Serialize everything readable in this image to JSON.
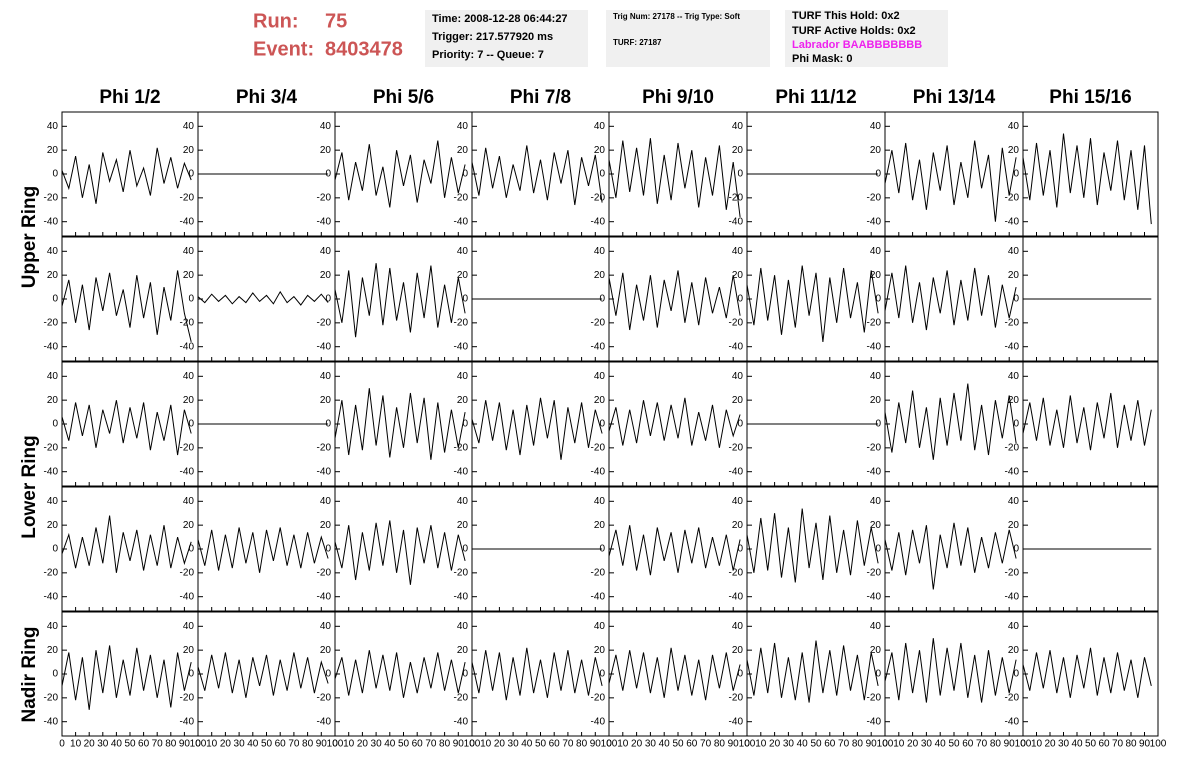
{
  "chart_data": {
    "type": "line",
    "color": "#000000",
    "header": {
      "run_label": "Run:",
      "run": "75",
      "event_label": "Event:",
      "event": "8403478",
      "box1": [
        "Time: 2008-12-28 06:44:27",
        "Trigger: 217.577920 ms",
        "Priority: 7 -- Queue: 7"
      ],
      "box2": [
        "Trig Num: 27178 -- Trig Type: Soft",
        "TURF: 27187"
      ],
      "box3": [
        "TURF This Hold: 0x2",
        "TURF Active Holds: 0x2",
        "Labrador BAABBBBBBB",
        "Phi Mask: 0"
      ]
    },
    "column_titles": [
      "Phi 1/2",
      "Phi 3/4",
      "Phi 5/6",
      "Phi 7/8",
      "Phi 9/10",
      "Phi 11/12",
      "Phi 13/14",
      "Phi 15/16"
    ],
    "row_titles": [
      "Upper Ring",
      "Lower Ring",
      "Nadir Ring"
    ],
    "xlim": [
      0,
      100
    ],
    "xticks": [
      0,
      10,
      20,
      30,
      40,
      50,
      60,
      70,
      80,
      90,
      100
    ],
    "ylim": [
      -52,
      52
    ],
    "yticks": [
      -40,
      -20,
      0,
      20,
      40
    ],
    "x": [
      0,
      5,
      10,
      15,
      20,
      25,
      30,
      35,
      40,
      45,
      50,
      55,
      60,
      65,
      70,
      75,
      80,
      85,
      90,
      95
    ],
    "series": [
      {
        "values": [
          3,
          -12,
          15,
          -20,
          8,
          -25,
          18,
          -6,
          12,
          -15,
          20,
          -10,
          5,
          -18,
          22,
          -8,
          14,
          -12,
          9,
          -5
        ]
      },
      {
        "values": [
          0,
          0,
          0,
          0,
          0,
          0,
          0,
          0,
          0,
          0,
          0,
          0,
          0,
          0,
          0,
          0,
          0,
          0,
          0,
          0
        ]
      },
      {
        "values": [
          -5,
          18,
          -22,
          10,
          -14,
          25,
          -18,
          6,
          -28,
          20,
          -10,
          16,
          -24,
          12,
          -8,
          28,
          -20,
          14,
          -16,
          8
        ]
      },
      {
        "values": [
          10,
          -18,
          22,
          -12,
          15,
          -20,
          8,
          -14,
          24,
          -16,
          12,
          -22,
          18,
          -8,
          20,
          -26,
          14,
          -10,
          16,
          -24
        ]
      },
      {
        "values": [
          12,
          -20,
          28,
          -15,
          22,
          -18,
          30,
          -25,
          16,
          -22,
          26,
          -12,
          20,
          -28,
          14,
          -18,
          24,
          -30,
          10,
          -36
        ]
      },
      {
        "values": [
          0,
          0,
          0,
          0,
          0,
          0,
          0,
          0,
          0,
          0,
          0,
          0,
          0,
          0,
          0,
          0,
          0,
          0,
          0,
          0
        ]
      },
      {
        "values": [
          -8,
          20,
          -16,
          26,
          -22,
          12,
          -30,
          18,
          -14,
          24,
          -26,
          10,
          -20,
          28,
          -12,
          16,
          -40,
          22,
          -18,
          14
        ]
      },
      {
        "values": [
          14,
          -22,
          26,
          -18,
          20,
          -28,
          34,
          -16,
          24,
          -20,
          30,
          -26,
          18,
          -14,
          28,
          -22,
          20,
          -30,
          24,
          -42
        ]
      },
      {
        "values": [
          -6,
          16,
          -20,
          12,
          -26,
          18,
          -10,
          22,
          -14,
          8,
          -24,
          20,
          -16,
          14,
          -30,
          10,
          -18,
          24,
          -12,
          -36
        ]
      },
      {
        "values": [
          2,
          -3,
          4,
          -2,
          3,
          -4,
          2,
          -3,
          5,
          -2,
          3,
          -4,
          6,
          -3,
          2,
          -5,
          3,
          -2,
          4,
          -3
        ]
      },
      {
        "values": [
          8,
          -20,
          24,
          -32,
          18,
          -14,
          30,
          -22,
          26,
          -18,
          14,
          -28,
          22,
          -16,
          28,
          -24,
          12,
          -20,
          18,
          -12
        ]
      },
      {
        "values": [
          0,
          0,
          0,
          0,
          0,
          0,
          0,
          0,
          0,
          0,
          0,
          0,
          0,
          0,
          0,
          0,
          0,
          0,
          0,
          0
        ]
      },
      {
        "values": [
          18,
          -14,
          22,
          -26,
          12,
          -18,
          20,
          -24,
          16,
          -10,
          24,
          -20,
          14,
          -22,
          18,
          -12,
          10,
          -16,
          20,
          -14
        ]
      },
      {
        "values": [
          12,
          -22,
          26,
          -18,
          20,
          -30,
          16,
          -24,
          28,
          -14,
          22,
          -36,
          18,
          -20,
          26,
          -16,
          14,
          -28,
          24,
          -12
        ]
      },
      {
        "values": [
          -10,
          22,
          -16,
          28,
          -20,
          14,
          -26,
          18,
          -12,
          24,
          -22,
          16,
          -18,
          26,
          -14,
          20,
          -24,
          12,
          -16,
          10
        ]
      },
      {
        "values": [
          0,
          0,
          0,
          0,
          0,
          0,
          0,
          0,
          0,
          0,
          0,
          0,
          0,
          0,
          0,
          0,
          0,
          0,
          0,
          0
        ]
      },
      {
        "values": [
          6,
          -14,
          18,
          -10,
          16,
          -20,
          12,
          -8,
          20,
          -16,
          14,
          -12,
          18,
          -22,
          10,
          -14,
          16,
          -26,
          12,
          -8
        ]
      },
      {
        "values": [
          0,
          0,
          0,
          0,
          0,
          0,
          0,
          0,
          0,
          0,
          0,
          0,
          0,
          0,
          0,
          0,
          0,
          0,
          0,
          0
        ]
      },
      {
        "values": [
          -12,
          20,
          -26,
          16,
          -22,
          30,
          -18,
          24,
          -28,
          14,
          -20,
          26,
          -16,
          22,
          -30,
          18,
          -24,
          12,
          -20,
          10
        ]
      },
      {
        "values": [
          4,
          -16,
          20,
          -14,
          18,
          -22,
          12,
          -26,
          16,
          -18,
          22,
          -12,
          20,
          -30,
          14,
          -16,
          18,
          -20,
          12,
          -8
        ]
      },
      {
        "values": [
          -6,
          14,
          -18,
          12,
          -16,
          20,
          -10,
          18,
          -14,
          16,
          -12,
          22,
          -18,
          10,
          -14,
          16,
          -20,
          12,
          -10,
          8
        ]
      },
      {
        "values": [
          0,
          0,
          0,
          0,
          0,
          0,
          0,
          0,
          0,
          0,
          0,
          0,
          0,
          0,
          0,
          0,
          0,
          0,
          0,
          0
        ]
      },
      {
        "values": [
          10,
          -24,
          18,
          -16,
          28,
          -20,
          14,
          -30,
          22,
          -18,
          26,
          -14,
          34,
          -22,
          16,
          -26,
          20,
          -12,
          24,
          -16
        ]
      },
      {
        "values": [
          -8,
          18,
          -14,
          22,
          -18,
          12,
          -20,
          24,
          -16,
          14,
          -22,
          18,
          -12,
          26,
          -20,
          16,
          -14,
          20,
          -18,
          12
        ]
      },
      {
        "values": [
          -4,
          12,
          -16,
          10,
          -14,
          18,
          -12,
          28,
          -20,
          14,
          -10,
          16,
          -18,
          12,
          -14,
          20,
          -16,
          10,
          -12,
          6
        ]
      },
      {
        "values": [
          8,
          -14,
          16,
          -18,
          12,
          -16,
          18,
          -12,
          14,
          -20,
          16,
          -10,
          18,
          -14,
          12,
          -16,
          14,
          -12,
          10,
          -8
        ]
      },
      {
        "values": [
          6,
          -16,
          20,
          -26,
          14,
          -18,
          22,
          -14,
          24,
          -20,
          16,
          -30,
          18,
          -12,
          20,
          -16,
          14,
          -18,
          12,
          -10
        ]
      },
      {
        "values": [
          0,
          0,
          0,
          0,
          0,
          0,
          0,
          0,
          0,
          0,
          0,
          0,
          0,
          0,
          0,
          0,
          0,
          0,
          0,
          0
        ]
      },
      {
        "values": [
          -6,
          16,
          -14,
          20,
          -18,
          12,
          -22,
          18,
          -10,
          14,
          -20,
          16,
          -12,
          18,
          -16,
          10,
          -14,
          12,
          -18,
          8
        ]
      },
      {
        "values": [
          12,
          -20,
          26,
          -18,
          30,
          -24,
          18,
          -28,
          34,
          -16,
          22,
          -26,
          28,
          -20,
          16,
          -22,
          24,
          -14,
          18,
          -12
        ]
      },
      {
        "values": [
          8,
          -18,
          14,
          -22,
          16,
          -12,
          20,
          -34,
          12,
          -16,
          22,
          -14,
          18,
          -20,
          10,
          -16,
          14,
          -12,
          16,
          -8
        ]
      },
      {
        "values": [
          0,
          0,
          0,
          0,
          0,
          0,
          0,
          0,
          0,
          0,
          0,
          0,
          0,
          0,
          0,
          0,
          0,
          0,
          0,
          0
        ]
      },
      {
        "values": [
          -10,
          18,
          -22,
          14,
          -30,
          20,
          -16,
          24,
          -20,
          12,
          -18,
          22,
          -14,
          16,
          -20,
          12,
          -28,
          18,
          -14,
          10
        ]
      },
      {
        "values": [
          6,
          -14,
          16,
          -12,
          18,
          -16,
          12,
          -20,
          14,
          -10,
          16,
          -18,
          12,
          -14,
          18,
          -12,
          14,
          -16,
          10,
          -8
        ]
      },
      {
        "values": [
          -4,
          14,
          -18,
          12,
          -16,
          20,
          -12,
          16,
          -14,
          18,
          -20,
          10,
          -16,
          14,
          -12,
          18,
          -14,
          12,
          -16,
          10
        ]
      },
      {
        "values": [
          10,
          -16,
          20,
          -14,
          18,
          -22,
          14,
          -18,
          22,
          -16,
          12,
          -20,
          18,
          -14,
          20,
          -16,
          12,
          -18,
          14,
          -10
        ]
      },
      {
        "values": [
          -8,
          16,
          -14,
          20,
          -12,
          18,
          -16,
          14,
          -20,
          22,
          -14,
          16,
          -18,
          12,
          -22,
          16,
          -12,
          18,
          -14,
          8
        ]
      },
      {
        "values": [
          12,
          -18,
          22,
          -16,
          26,
          -20,
          14,
          -22,
          18,
          -24,
          28,
          -16,
          20,
          -18,
          24,
          -14,
          16,
          -22,
          18,
          -10
        ]
      },
      {
        "values": [
          -6,
          18,
          -22,
          26,
          -16,
          20,
          -24,
          30,
          -18,
          22,
          -14,
          26,
          -20,
          16,
          -24,
          20,
          -18,
          14,
          -16,
          12
        ]
      },
      {
        "values": [
          8,
          -14,
          18,
          -12,
          20,
          -16,
          14,
          -20,
          16,
          -12,
          22,
          -18,
          14,
          -16,
          18,
          -14,
          12,
          -20,
          14,
          -10
        ]
      }
    ]
  }
}
